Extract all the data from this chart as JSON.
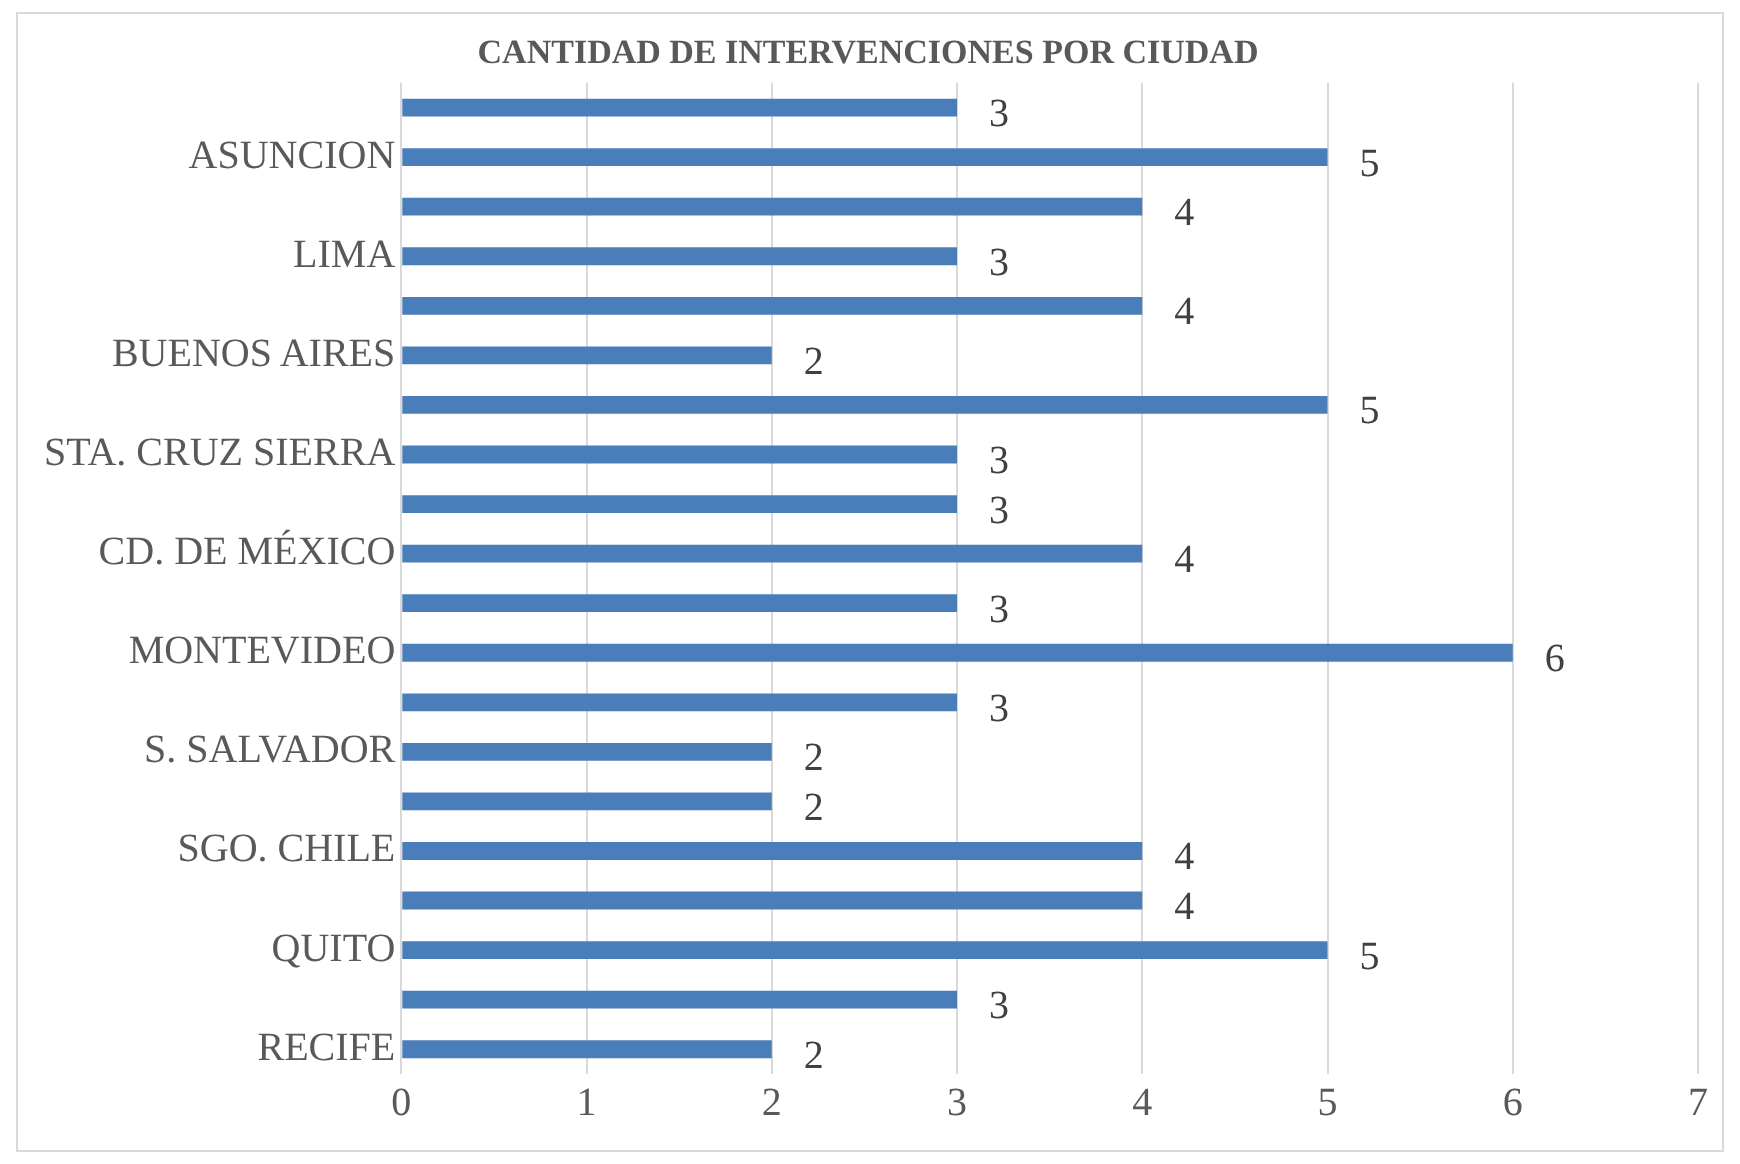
{
  "chart_data": {
    "type": "bar",
    "orientation": "horizontal",
    "title": "CANTIDAD DE INTERVENCIONES POR CIUDAD",
    "categories": [
      null,
      "ASUNCION",
      null,
      "LIMA",
      null,
      "BUENOS AIRES",
      null,
      "STA. CRUZ SIERRA",
      null,
      "CD. DE MÉXICO",
      null,
      "MONTEVIDEO",
      null,
      "S. SALVADOR",
      null,
      "SGO. CHILE",
      null,
      "QUITO",
      null,
      "RECIFE"
    ],
    "values": [
      3,
      5,
      4,
      3,
      4,
      2,
      5,
      3,
      3,
      4,
      3,
      6,
      3,
      2,
      2,
      4,
      4,
      5,
      3,
      2
    ],
    "color": "#4a7ebb",
    "xlim": [
      0,
      7
    ],
    "xticks": [
      0,
      1,
      2,
      3,
      4,
      5,
      6,
      7
    ],
    "grid": "x",
    "legend": false,
    "data_labels": true
  }
}
